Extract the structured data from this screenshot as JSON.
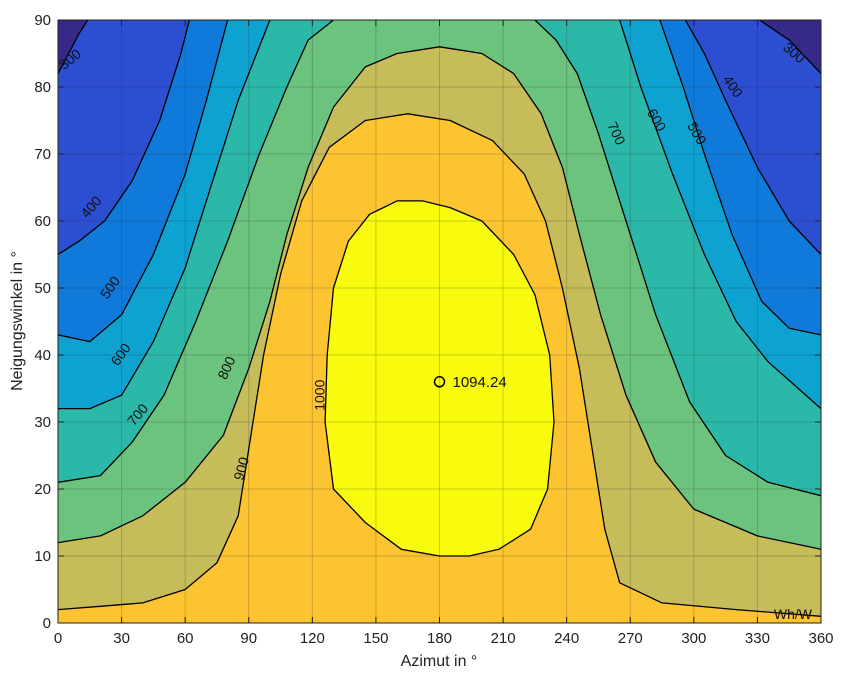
{
  "chart_data": {
    "type": "contour",
    "xlabel": "Azimut in °",
    "ylabel": "Neigungswinkel in °",
    "xlim": [
      0,
      360
    ],
    "ylim": [
      0,
      90
    ],
    "xticks": [
      0,
      30,
      60,
      90,
      120,
      150,
      180,
      210,
      240,
      270,
      300,
      330,
      360
    ],
    "yticks": [
      0,
      10,
      20,
      30,
      40,
      50,
      60,
      70,
      80,
      90
    ],
    "grid": true,
    "unit_label": "Wh/W",
    "levels": [
      300,
      400,
      500,
      600,
      700,
      800,
      900,
      1000
    ],
    "level_colors": [
      "#352a87",
      "#2b4fd0",
      "#0f7ad9",
      "#0ea2d0",
      "#2bb8a8",
      "#6cc37e",
      "#c6bc5a",
      "#fdc431",
      "#f9fb0e"
    ],
    "contours": [
      {
        "level": 300,
        "points": [
          [
            0,
            82
          ],
          [
            10,
            88
          ],
          [
            14,
            90
          ]
        ]
      },
      {
        "level": 300,
        "points": [
          [
            331,
            90
          ],
          [
            345,
            87
          ],
          [
            360,
            82
          ]
        ]
      },
      {
        "level": 400,
        "points": [
          [
            0,
            55
          ],
          [
            10,
            57
          ],
          [
            22,
            60
          ],
          [
            35,
            66
          ],
          [
            48,
            75
          ],
          [
            58,
            85
          ],
          [
            62,
            90
          ]
        ]
      },
      {
        "level": 400,
        "points": [
          [
            296,
            90
          ],
          [
            305,
            85
          ],
          [
            315,
            78
          ],
          [
            330,
            68
          ],
          [
            345,
            60
          ],
          [
            360,
            55
          ]
        ]
      },
      {
        "level": 500,
        "points": [
          [
            0,
            43
          ],
          [
            15,
            42
          ],
          [
            30,
            46
          ],
          [
            45,
            55
          ],
          [
            60,
            67
          ],
          [
            70,
            78
          ],
          [
            80,
            90
          ]
        ]
      },
      {
        "level": 500,
        "points": [
          [
            284,
            90
          ],
          [
            295,
            80
          ],
          [
            305,
            70
          ],
          [
            318,
            58
          ],
          [
            332,
            48
          ],
          [
            345,
            44
          ],
          [
            360,
            43
          ]
        ]
      },
      {
        "level": 600,
        "points": [
          [
            0,
            32
          ],
          [
            15,
            32
          ],
          [
            30,
            34
          ],
          [
            45,
            42
          ],
          [
            60,
            53
          ],
          [
            72,
            65
          ],
          [
            85,
            78
          ],
          [
            100,
            90
          ]
        ]
      },
      {
        "level": 600,
        "points": [
          [
            265,
            90
          ],
          [
            275,
            80
          ],
          [
            290,
            67
          ],
          [
            305,
            55
          ],
          [
            320,
            45
          ],
          [
            335,
            39
          ],
          [
            360,
            32
          ]
        ]
      },
      {
        "level": 700,
        "points": [
          [
            0,
            21
          ],
          [
            20,
            22
          ],
          [
            35,
            27
          ],
          [
            50,
            34
          ],
          [
            65,
            45
          ],
          [
            80,
            57
          ],
          [
            95,
            70
          ],
          [
            108,
            80
          ],
          [
            118,
            87
          ],
          [
            130,
            90
          ]
        ]
      },
      {
        "level": 700,
        "points": [
          [
            225,
            90
          ],
          [
            235,
            87
          ],
          [
            245,
            82
          ],
          [
            255,
            73
          ],
          [
            268,
            60
          ],
          [
            282,
            46
          ],
          [
            298,
            33
          ],
          [
            315,
            25
          ],
          [
            335,
            21
          ],
          [
            360,
            19
          ]
        ]
      },
      {
        "level": 800,
        "points": [
          [
            0,
            12
          ],
          [
            20,
            13
          ],
          [
            40,
            16
          ],
          [
            60,
            21
          ],
          [
            78,
            28
          ],
          [
            90,
            38
          ],
          [
            100,
            48
          ],
          [
            108,
            58
          ],
          [
            118,
            68
          ],
          [
            130,
            77
          ],
          [
            145,
            83
          ],
          [
            160,
            85
          ],
          [
            180,
            86
          ],
          [
            200,
            85
          ],
          [
            215,
            82
          ],
          [
            228,
            76
          ],
          [
            238,
            68
          ],
          [
            246,
            58
          ],
          [
            256,
            46
          ],
          [
            268,
            34
          ],
          [
            282,
            24
          ],
          [
            300,
            17
          ],
          [
            330,
            13
          ],
          [
            360,
            11
          ]
        ]
      },
      {
        "level": 900,
        "points": [
          [
            0,
            2
          ],
          [
            20,
            2.5
          ],
          [
            40,
            3
          ],
          [
            60,
            5
          ],
          [
            75,
            9
          ],
          [
            85,
            16
          ],
          [
            90,
            26
          ],
          [
            97,
            40
          ],
          [
            105,
            52
          ],
          [
            115,
            63
          ],
          [
            128,
            71
          ],
          [
            145,
            75
          ],
          [
            165,
            76
          ],
          [
            185,
            75
          ],
          [
            205,
            72
          ],
          [
            220,
            67
          ],
          [
            230,
            60
          ],
          [
            238,
            50
          ],
          [
            246,
            38
          ],
          [
            252,
            26
          ],
          [
            258,
            14
          ],
          [
            265,
            6
          ],
          [
            285,
            3
          ],
          [
            320,
            2
          ],
          [
            360,
            1
          ]
        ]
      },
      {
        "level": 1000,
        "points": [
          [
            180,
            10
          ],
          [
            162,
            11
          ],
          [
            145,
            15
          ],
          [
            130,
            20
          ],
          [
            126,
            30
          ],
          [
            127,
            40
          ],
          [
            130,
            50
          ],
          [
            137,
            57
          ],
          [
            147,
            61
          ],
          [
            160,
            63
          ],
          [
            172,
            63
          ],
          [
            185,
            62
          ],
          [
            200,
            60
          ],
          [
            215,
            55
          ],
          [
            225,
            49
          ],
          [
            232,
            40
          ],
          [
            234,
            30
          ],
          [
            231,
            20
          ],
          [
            223,
            14
          ],
          [
            208,
            11
          ],
          [
            194,
            10
          ],
          [
            180,
            10
          ]
        ]
      }
    ],
    "contour_labels": [
      {
        "text": "300",
        "x": 6,
        "y": 84,
        "angle": -40
      },
      {
        "text": "300",
        "x": 347,
        "y": 85,
        "angle": 40
      },
      {
        "text": "400",
        "x": 16,
        "y": 62,
        "angle": -50
      },
      {
        "text": "400",
        "x": 318,
        "y": 80,
        "angle": 55
      },
      {
        "text": "500",
        "x": 25,
        "y": 50,
        "angle": -55
      },
      {
        "text": "500",
        "x": 301,
        "y": 73,
        "angle": 60
      },
      {
        "text": "600",
        "x": 30,
        "y": 40,
        "angle": -55
      },
      {
        "text": "600",
        "x": 282,
        "y": 75,
        "angle": 60
      },
      {
        "text": "700",
        "x": 38,
        "y": 31,
        "angle": -50
      },
      {
        "text": "700",
        "x": 263,
        "y": 73,
        "angle": 65
      },
      {
        "text": "800",
        "x": 80,
        "y": 38,
        "angle": -65
      },
      {
        "text": "900",
        "x": 87,
        "y": 23,
        "angle": -75
      },
      {
        "text": "1000",
        "x": 124,
        "y": 34,
        "angle": -90
      }
    ],
    "peak": {
      "x": 180,
      "y": 36,
      "label": "1094.24"
    }
  }
}
